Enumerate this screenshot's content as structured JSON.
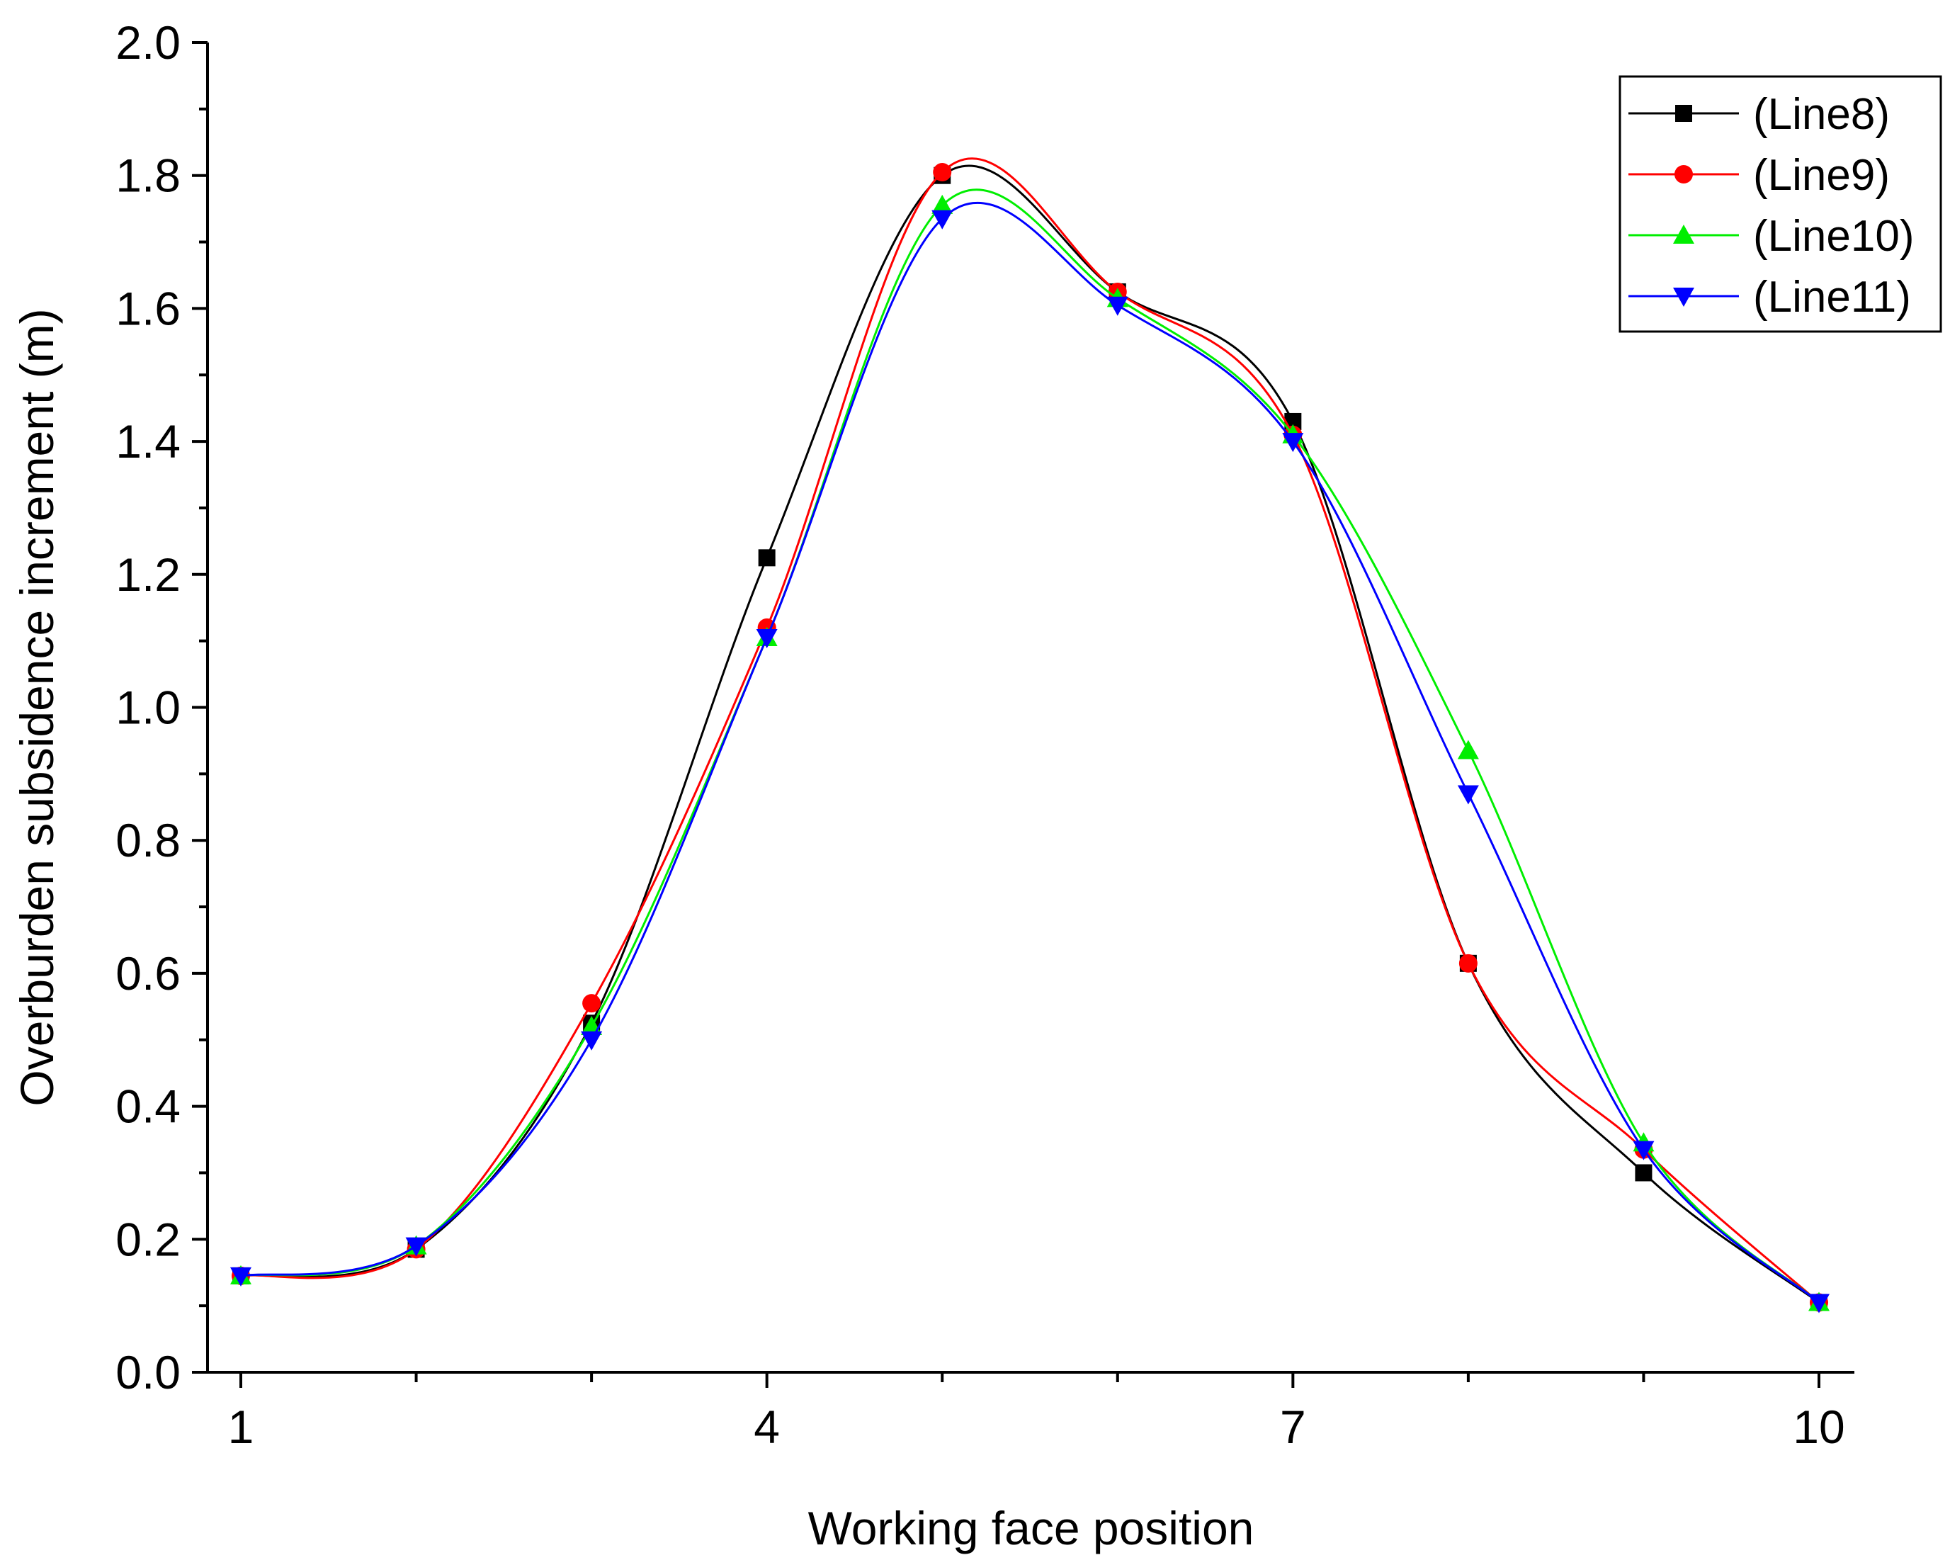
{
  "chart_data": {
    "type": "line",
    "title": "",
    "xlabel": "Working face position",
    "ylabel": "Overburden subsidence increment (m)",
    "xlim": [
      0.8,
      10.2
    ],
    "ylim": [
      0,
      2.0
    ],
    "x": [
      1,
      2,
      3,
      4,
      5,
      6,
      7,
      8,
      9,
      10
    ],
    "x_ticks": [
      1,
      2,
      3,
      4,
      5,
      6,
      7,
      8,
      9,
      10
    ],
    "x_tick_labels": [
      "1",
      "",
      "",
      "4",
      "",
      "",
      "7",
      "",
      "",
      "10"
    ],
    "y_ticks": [
      0,
      0.2,
      0.4,
      0.6,
      0.8,
      1.0,
      1.2,
      1.4,
      1.6,
      1.8,
      2.0
    ],
    "y_tick_labels": [
      "0.0",
      "0.2",
      "0.4",
      "0.6",
      "0.8",
      "1.0",
      "1.2",
      "1.4",
      "1.6",
      "1.8",
      "2.0"
    ],
    "grid": false,
    "legend_position": "top-right",
    "series": [
      {
        "name": "(Line8)",
        "color": "#000000",
        "marker": "square",
        "values": [
          0.145,
          0.185,
          0.525,
          1.225,
          1.8,
          1.625,
          1.43,
          0.615,
          0.3,
          0.105
        ]
      },
      {
        "name": "(Line9)",
        "color": "#ff0000",
        "marker": "circle",
        "values": [
          0.145,
          0.185,
          0.555,
          1.12,
          1.805,
          1.625,
          1.41,
          0.615,
          0.335,
          0.105
        ]
      },
      {
        "name": "(Line10)",
        "color": "#00ee00",
        "marker": "triangle-up",
        "values": [
          0.145,
          0.19,
          0.52,
          1.105,
          1.755,
          1.615,
          1.41,
          0.935,
          0.345,
          0.105
        ]
      },
      {
        "name": "(Line11)",
        "color": "#0000ff",
        "marker": "triangle-down",
        "values": [
          0.145,
          0.19,
          0.5,
          1.105,
          1.735,
          1.605,
          1.4,
          0.87,
          0.335,
          0.105
        ]
      }
    ]
  }
}
